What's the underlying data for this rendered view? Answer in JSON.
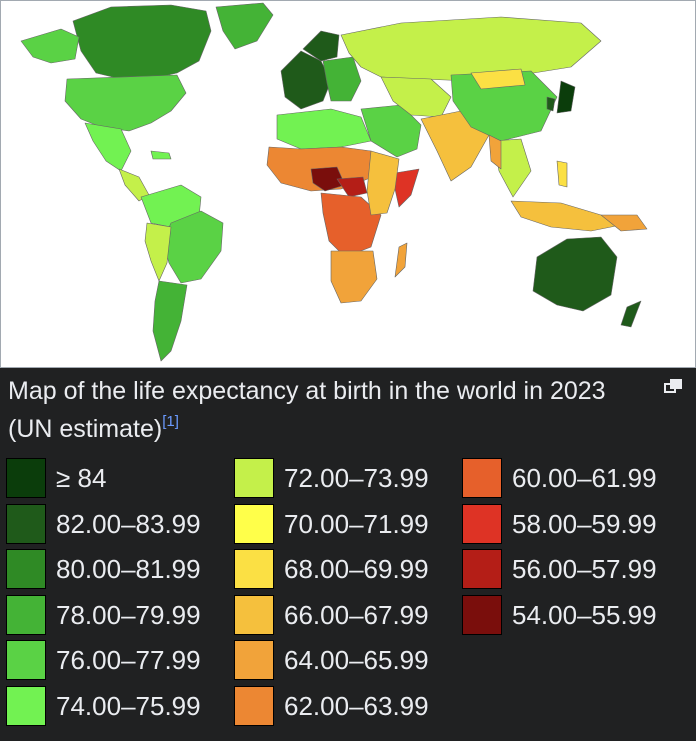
{
  "map": {
    "ocean_color": "#ffffff",
    "border_color": "#666666"
  },
  "caption": {
    "text": "Map of the life expectancy at birth in the world in 2023 (UN estimate)",
    "ref": "[1]",
    "link_color": "#6b9bff"
  },
  "enlarge_icon": "enlarge-icon",
  "legend": {
    "columns": [
      [
        {
          "label": "≥ 84",
          "color": "#0b3d0b"
        },
        {
          "label": "82.00–83.99",
          "color": "#1f5a1a"
        },
        {
          "label": "80.00–81.99",
          "color": "#2f8a25"
        },
        {
          "label": "78.00–79.99",
          "color": "#44b336"
        },
        {
          "label": "76.00–77.99",
          "color": "#5ad245"
        },
        {
          "label": "74.00–75.99",
          "color": "#72f252"
        }
      ],
      [
        {
          "label": "72.00–73.99",
          "color": "#c4f04a"
        },
        {
          "label": "70.00–71.99",
          "color": "#ffff4a"
        },
        {
          "label": "68.00–69.99",
          "color": "#fbe044"
        },
        {
          "label": "66.00–67.99",
          "color": "#f5c03d"
        },
        {
          "label": "64.00–65.99",
          "color": "#f1a33a"
        },
        {
          "label": "62.00–63.99",
          "color": "#ec8733"
        }
      ],
      [
        {
          "label": "60.00–61.99",
          "color": "#e6602b"
        },
        {
          "label": "58.00–59.99",
          "color": "#de3325"
        },
        {
          "label": "56.00–57.99",
          "color": "#b41e17"
        },
        {
          "label": "54.00–55.99",
          "color": "#7a0e0c"
        }
      ]
    ]
  }
}
